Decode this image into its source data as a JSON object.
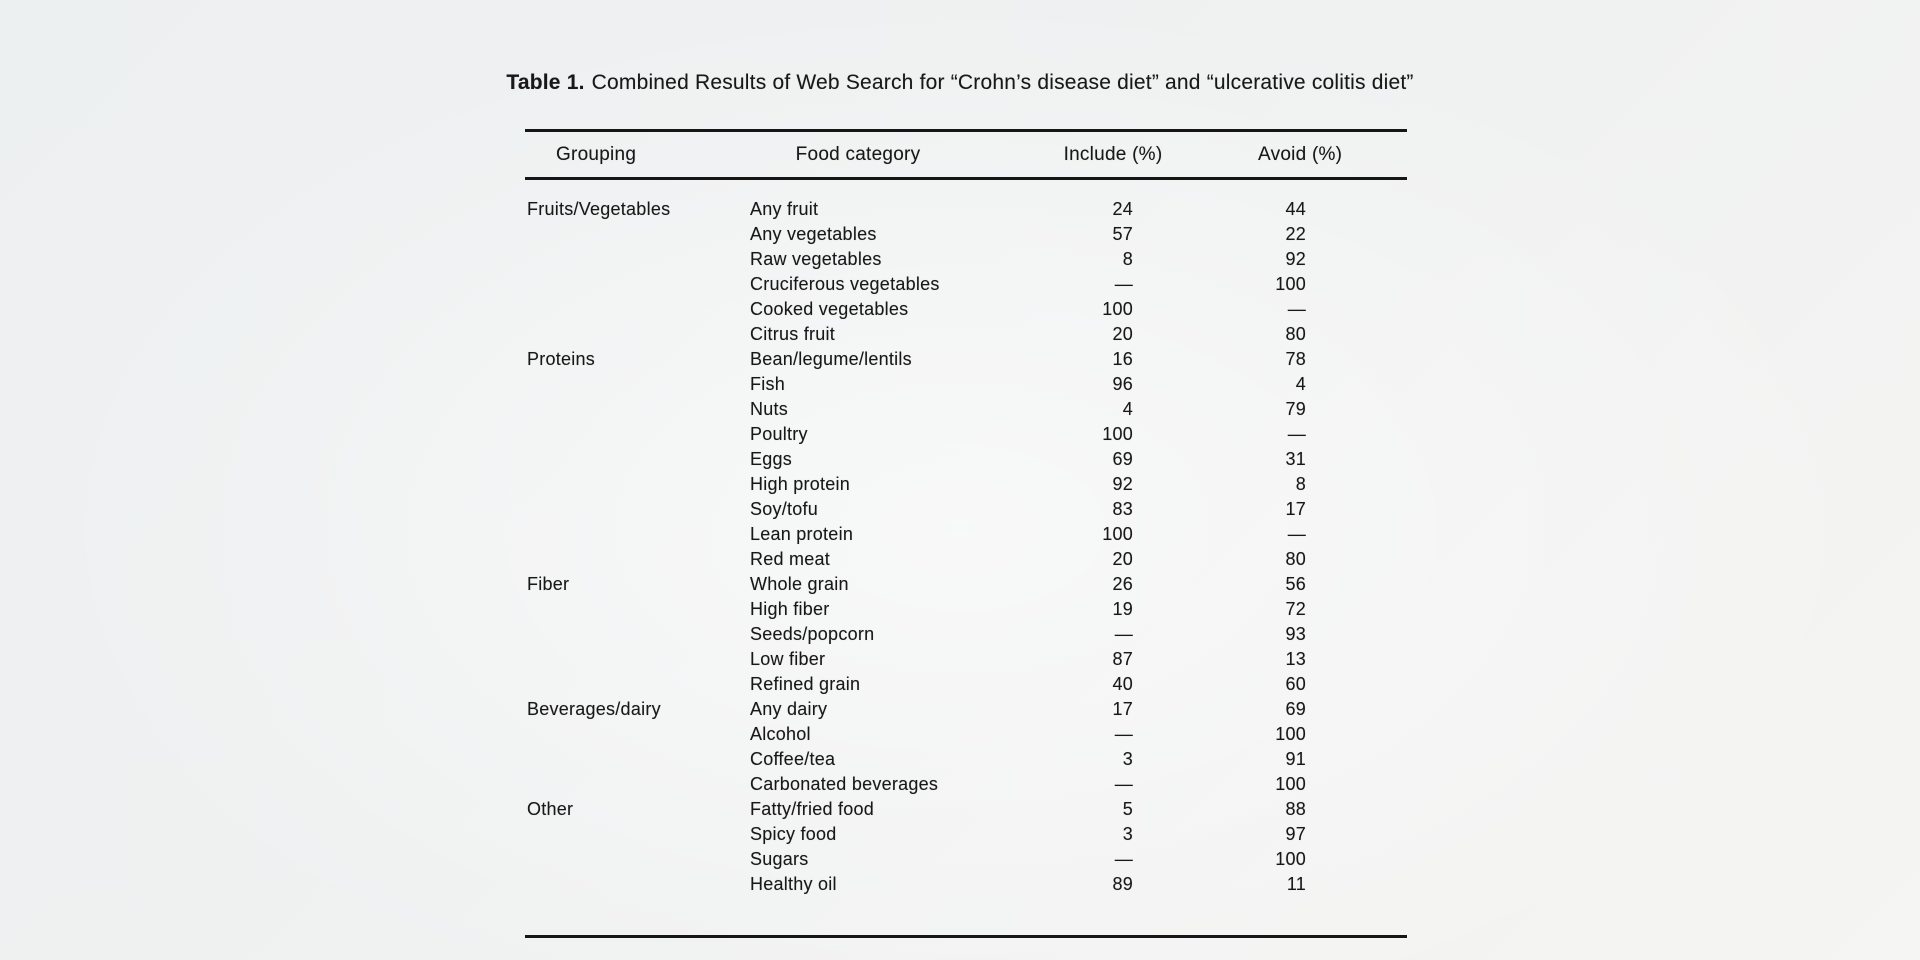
{
  "page": {
    "background_color": "#eff1f1",
    "text_color": "#181818",
    "rule_color": "#161616"
  },
  "table": {
    "title_label": "Table 1.",
    "title_text": "Combined Results of Web Search for “Crohn’s disease diet” and “ulcerative colitis diet”",
    "columns": [
      "Grouping",
      "Food category",
      "Include (%)",
      "Avoid (%)"
    ],
    "missing_value_symbol": "—",
    "groupings": [
      "Fruits/Vegetables",
      "Proteins",
      "Fiber",
      "Beverages/dairy",
      "Other"
    ],
    "rows": [
      {
        "grouping": "Fruits/Vegetables",
        "food": "Any fruit",
        "include": "24",
        "avoid": "44"
      },
      {
        "grouping": "",
        "food": "Any vegetables",
        "include": "57",
        "avoid": "22"
      },
      {
        "grouping": "",
        "food": "Raw vegetables",
        "include": "8",
        "avoid": "92"
      },
      {
        "grouping": "",
        "food": "Cruciferous vegetables",
        "include": "—",
        "avoid": "100"
      },
      {
        "grouping": "",
        "food": "Cooked vegetables",
        "include": "100",
        "avoid": "—"
      },
      {
        "grouping": "",
        "food": "Citrus fruit",
        "include": "20",
        "avoid": "80"
      },
      {
        "grouping": "Proteins",
        "food": "Bean/legume/lentils",
        "include": "16",
        "avoid": "78"
      },
      {
        "grouping": "",
        "food": "Fish",
        "include": "96",
        "avoid": "4"
      },
      {
        "grouping": "",
        "food": "Nuts",
        "include": "4",
        "avoid": "79"
      },
      {
        "grouping": "",
        "food": "Poultry",
        "include": "100",
        "avoid": "—"
      },
      {
        "grouping": "",
        "food": "Eggs",
        "include": "69",
        "avoid": "31"
      },
      {
        "grouping": "",
        "food": "High protein",
        "include": "92",
        "avoid": "8"
      },
      {
        "grouping": "",
        "food": "Soy/tofu",
        "include": "83",
        "avoid": "17"
      },
      {
        "grouping": "",
        "food": "Lean protein",
        "include": "100",
        "avoid": "—"
      },
      {
        "grouping": "",
        "food": "Red meat",
        "include": "20",
        "avoid": "80"
      },
      {
        "grouping": "Fiber",
        "food": "Whole grain",
        "include": "26",
        "avoid": "56"
      },
      {
        "grouping": "",
        "food": "High fiber",
        "include": "19",
        "avoid": "72"
      },
      {
        "grouping": "",
        "food": "Seeds/popcorn",
        "include": "—",
        "avoid": "93"
      },
      {
        "grouping": "",
        "food": "Low fiber",
        "include": "87",
        "avoid": "13"
      },
      {
        "grouping": "",
        "food": "Refined grain",
        "include": "40",
        "avoid": "60"
      },
      {
        "grouping": "Beverages/dairy",
        "food": "Any dairy",
        "include": "17",
        "avoid": "69"
      },
      {
        "grouping": "",
        "food": "Alcohol",
        "include": "—",
        "avoid": "100"
      },
      {
        "grouping": "",
        "food": "Coffee/tea",
        "include": "3",
        "avoid": "91"
      },
      {
        "grouping": "",
        "food": "Carbonated beverages",
        "include": "—",
        "avoid": "100"
      },
      {
        "grouping": "Other",
        "food": "Fatty/fried food",
        "include": "5",
        "avoid": "88"
      },
      {
        "grouping": "",
        "food": "Spicy food",
        "include": "3",
        "avoid": "97"
      },
      {
        "grouping": "",
        "food": "Sugars",
        "include": "—",
        "avoid": "100"
      },
      {
        "grouping": "",
        "food": "Healthy oil",
        "include": "89",
        "avoid": "11"
      }
    ]
  }
}
